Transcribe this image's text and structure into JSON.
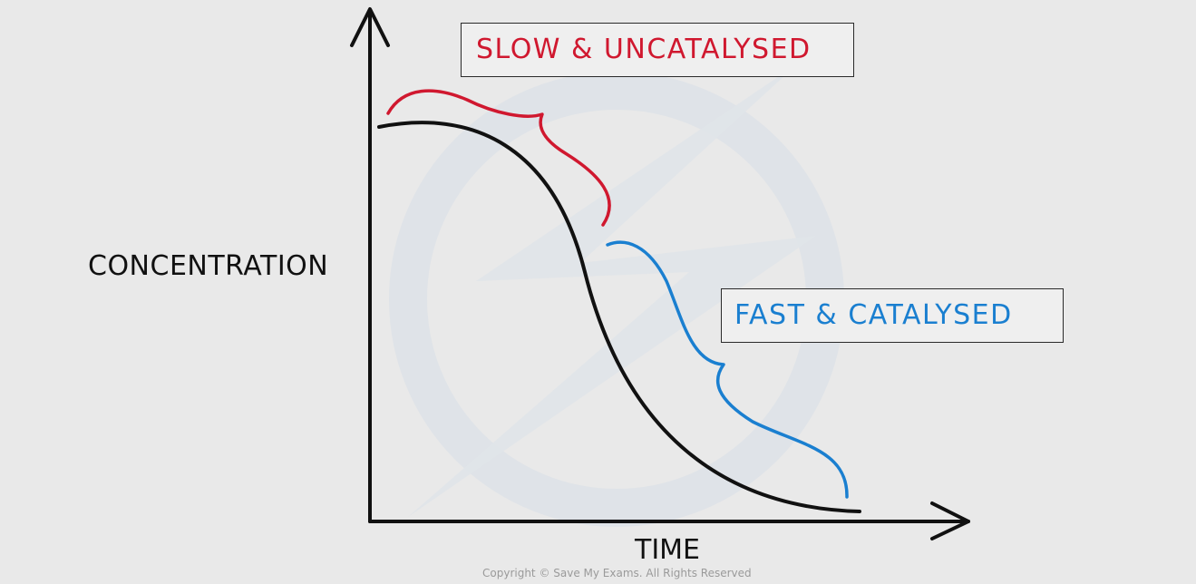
{
  "diagram": {
    "y_axis_label": "CONCENTRATION",
    "x_axis_label": "TIME",
    "labels": {
      "slow": "SLOW & UNCATALYSED",
      "fast": "FAST & CATALYSED"
    },
    "copyright": "Copyright © Save My Exams. All Rights Reserved"
  },
  "colors": {
    "background": "#e9e9e9",
    "axis": "#111111",
    "curve": "#111111",
    "slow": "#d0182f",
    "fast": "#1a7fd0",
    "watermark": "#dfe3e8"
  }
}
